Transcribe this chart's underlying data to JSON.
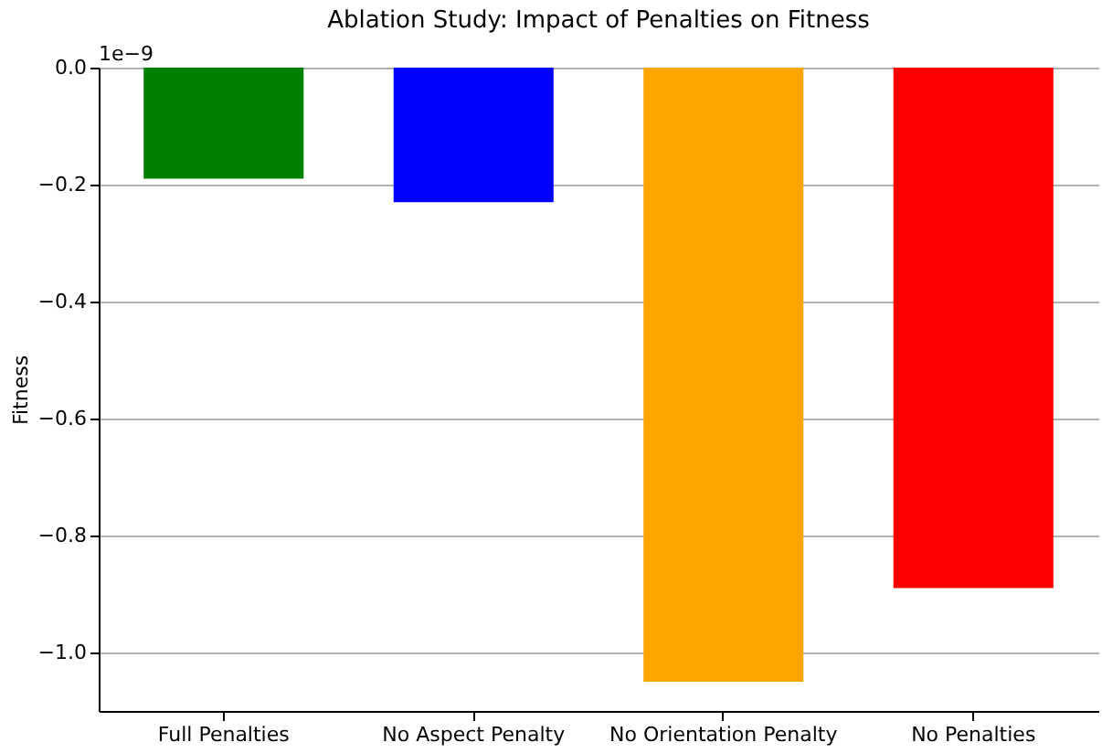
{
  "chart_data": {
    "type": "bar",
    "title": "Ablation Study: Impact of Penalties on Fitness",
    "ylabel": "Fitness",
    "annotations": [
      "1e−9"
    ],
    "categories": [
      "Full Penalties",
      "No Aspect Penalty",
      "No Orientation Penalty",
      "No Penalties"
    ],
    "values": [
      -0.19,
      -0.23,
      -1.05,
      -0.89
    ],
    "colors": [
      "#008000",
      "#0000ff",
      "#ffa500",
      "#ff0000"
    ],
    "ylim": [
      -1.1,
      0
    ],
    "yticks": [
      {
        "value": -1.0,
        "label": "−1.0"
      },
      {
        "value": -0.8,
        "label": "−0.8"
      },
      {
        "value": -0.6,
        "label": "−0.6"
      },
      {
        "value": -0.4,
        "label": "−0.4"
      },
      {
        "value": -0.2,
        "label": "−0.2"
      },
      {
        "value": 0,
        "label": "0.0"
      }
    ],
    "grid": "y"
  }
}
